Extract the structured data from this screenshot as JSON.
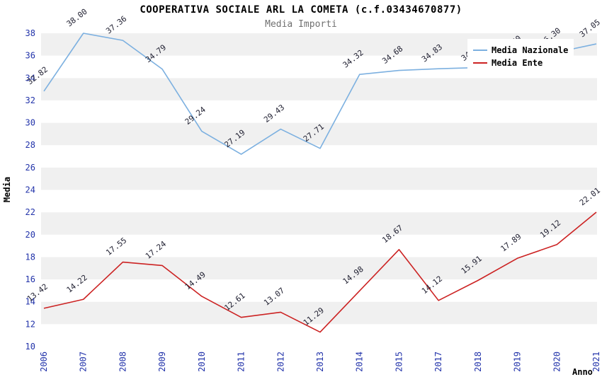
{
  "chart_data": {
    "type": "line",
    "title": "COOPERATIVA SOCIALE ARL LA COMETA (c.f.03434670877)",
    "subtitle": "Media Importi",
    "xlabel": "Anno",
    "ylabel": "Media",
    "ylim": [
      10,
      38
    ],
    "ytick_step": 2,
    "grid": "alternating-horizontal-bands",
    "legend_position": "top-right",
    "categories": [
      "2006",
      "2007",
      "2008",
      "2009",
      "2010",
      "2011",
      "2012",
      "2013",
      "2014",
      "2015",
      "2017",
      "2018",
      "2019",
      "2020",
      "2021"
    ],
    "series": [
      {
        "name": "Media Nazionale",
        "color": "#7cb0e0",
        "values": [
          32.82,
          38.0,
          37.36,
          34.79,
          29.24,
          27.19,
          29.43,
          27.71,
          34.32,
          34.68,
          34.83,
          34.93,
          35.6,
          36.3,
          37.05
        ]
      },
      {
        "name": "Media Ente",
        "color": "#cc2222",
        "values": [
          13.42,
          14.22,
          17.55,
          17.24,
          14.49,
          12.61,
          13.07,
          11.29,
          14.98,
          18.67,
          14.12,
          15.91,
          17.89,
          19.12,
          22.01
        ]
      }
    ]
  },
  "colors": {
    "band_gray": "#f0f0f0",
    "band_white": "#ffffff",
    "axis_ticks": "#2233aa",
    "point_labels": "#222233",
    "axis_titles": "#000000",
    "legend_bg": "#ffffff",
    "legend_text": "#000000",
    "subtitle": "#707070"
  }
}
